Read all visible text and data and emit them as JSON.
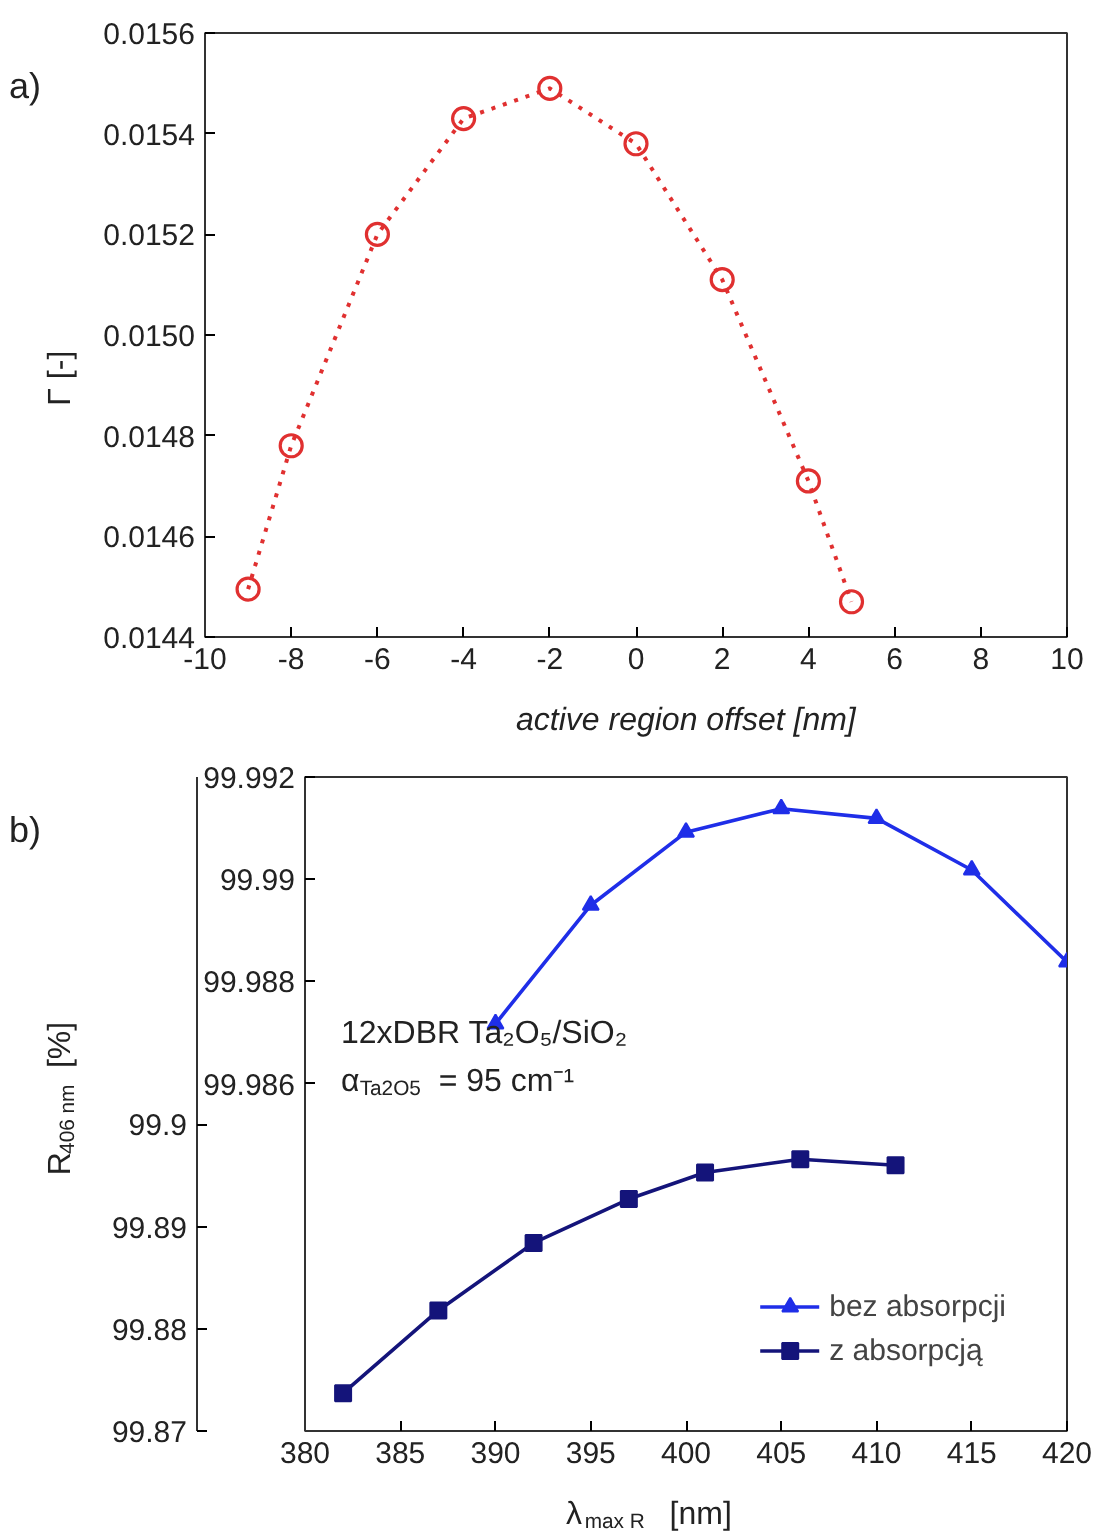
{
  "chart_data": [
    {
      "type": "line",
      "annotations": [
        "a)"
      ],
      "xlabel": "active region offset  [nm]",
      "ylabel": "Γ  [-]",
      "marker": "circle",
      "line_style": "dotted",
      "grid": false,
      "x": [
        -9,
        -8,
        -6,
        -4,
        -2,
        0,
        2,
        4,
        5
      ],
      "series": [
        {
          "color": "#e03030",
          "values": [
            0.014495,
            0.01478,
            0.0152,
            0.01543,
            0.01549,
            0.01538,
            0.01511,
            0.01471,
            0.01447
          ]
        }
      ],
      "xlim": [
        -10,
        10
      ],
      "xticks": [
        -10,
        -8,
        -6,
        -4,
        -2,
        0,
        2,
        4,
        6,
        8,
        10
      ],
      "ylim": [
        0.0144,
        0.0156
      ],
      "yticks": [
        0.0144,
        0.0146,
        0.0148,
        {
          "value": 0.015,
          "label": "0.0150"
        },
        0.0152,
        0.0154,
        0.0156
      ]
    },
    {
      "type": "line",
      "annotations": [
        "b)",
        "12xDBR Ta₂O₅/SiO₂",
        "α$_{Ta2O5}$ = 95 cm⁻¹"
      ],
      "xlabel": "λ$_{max R}$  [nm]",
      "ylabel": "R$_{406 nm}$  [%]",
      "line_style": "solid",
      "grid": false,
      "legend": "bottom right",
      "series": [
        {
          "name": "bez absorpcji",
          "color": "#1f2ee8",
          "marker": "triangle",
          "axis": "y2",
          "x": [
            390,
            395,
            400,
            405,
            410,
            415,
            420
          ],
          "values": [
            99.98717,
            99.98949,
            99.99092,
            99.99138,
            99.99119,
            99.99018,
            99.98838
          ]
        },
        {
          "name": "z absorpcją",
          "color": "#14147a",
          "marker": "square",
          "x": [
            382,
            387,
            392,
            397,
            401,
            406,
            411
          ],
          "values": [
            99.8737,
            99.8818,
            99.8884,
            99.8927,
            99.8953,
            99.8966,
            99.896
          ]
        }
      ],
      "xlim": [
        380,
        420
      ],
      "xticks": [
        380,
        385,
        390,
        395,
        400,
        405,
        410,
        415,
        420
      ],
      "ylim": [
        99.87,
        99.934
      ],
      "yticks": [
        99.87,
        99.88,
        99.89,
        99.9
      ],
      "y2lim": [
        99.9792,
        99.992
      ],
      "y2ticks": [
        99.986,
        99.988,
        99.99,
        99.992
      ]
    }
  ]
}
